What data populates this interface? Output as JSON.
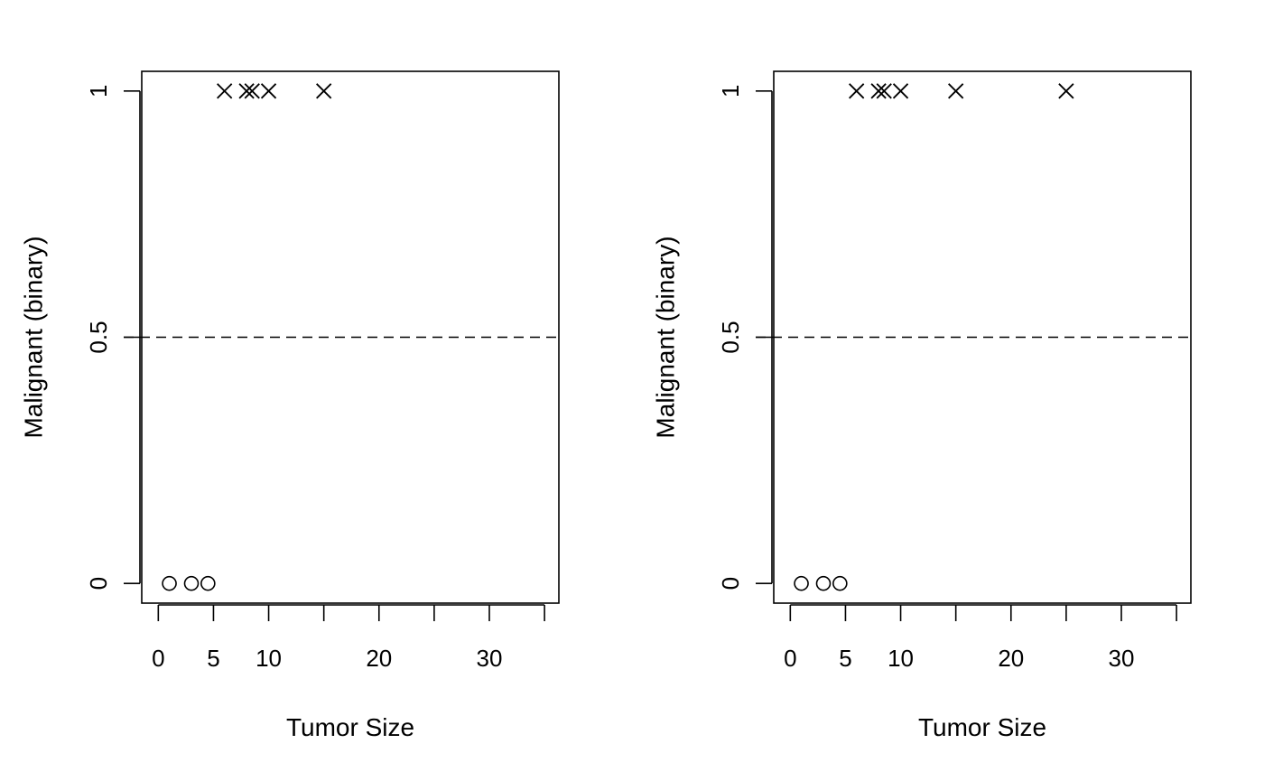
{
  "chart_data": [
    {
      "type": "scatter",
      "xlabel": "Tumor Size",
      "ylabel": "Malignant (binary)",
      "xlim": [
        -1.5,
        36.3
      ],
      "ylim": [
        -0.04,
        1.04
      ],
      "x_ticks": [
        0,
        5,
        10,
        15,
        20,
        25,
        30,
        35
      ],
      "x_tick_labels": [
        "0",
        "5",
        "10",
        "",
        "20",
        "",
        "30",
        ""
      ],
      "y_ticks": [
        0,
        0.5,
        1
      ],
      "y_tick_labels": [
        "0",
        "0.5",
        "1"
      ],
      "threshold_line": {
        "y": 0.5,
        "style": "dashed"
      },
      "grid": false,
      "series": [
        {
          "marker": "circle",
          "x": [
            1,
            3,
            4.5
          ],
          "y": [
            0,
            0,
            0
          ]
        },
        {
          "marker": "cross",
          "x": [
            6,
            8,
            8.5,
            10,
            15
          ],
          "y": [
            1,
            1,
            1,
            1,
            1
          ]
        }
      ]
    },
    {
      "type": "scatter",
      "xlabel": "Tumor Size",
      "ylabel": "Malignant (binary)",
      "xlim": [
        -1.5,
        36.3
      ],
      "ylim": [
        -0.04,
        1.04
      ],
      "x_ticks": [
        0,
        5,
        10,
        15,
        20,
        25,
        30,
        35
      ],
      "x_tick_labels": [
        "0",
        "5",
        "10",
        "",
        "20",
        "",
        "30",
        ""
      ],
      "y_ticks": [
        0,
        0.5,
        1
      ],
      "y_tick_labels": [
        "0",
        "0.5",
        "1"
      ],
      "threshold_line": {
        "y": 0.5,
        "style": "dashed"
      },
      "grid": false,
      "series": [
        {
          "marker": "circle",
          "x": [
            1,
            3,
            4.5
          ],
          "y": [
            0,
            0,
            0
          ]
        },
        {
          "marker": "cross",
          "x": [
            6,
            8,
            8.5,
            10,
            15,
            25
          ],
          "y": [
            1,
            1,
            1,
            1,
            1,
            1
          ]
        }
      ]
    }
  ]
}
